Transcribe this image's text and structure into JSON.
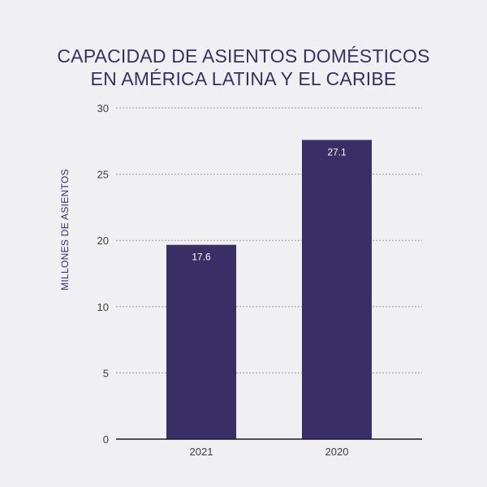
{
  "chart_data": {
    "type": "bar",
    "title": "CAPACIDAD DE ASIENTOS DOMÉSTICOS EN AMÉRICA LATINA Y EL CARIBE",
    "title_lines": [
      "CAPACIDAD DE ASIENTOS DOMÉSTICOS",
      "EN AMÉRICA LATINA Y EL CARIBE"
    ],
    "xlabel": "",
    "ylabel": "MILLONES DE ASIENTOS",
    "categories": [
      "2021",
      "2020"
    ],
    "values": [
      17.6,
      27.1
    ],
    "data_labels": [
      "17.6",
      "27.1"
    ],
    "y_ticks": [
      "0",
      "5",
      "10",
      "20",
      "25",
      "30"
    ],
    "ylim": [
      0,
      30
    ],
    "grid": true,
    "bar_color": "#3a2e66",
    "title_color": "#3a2e66"
  }
}
